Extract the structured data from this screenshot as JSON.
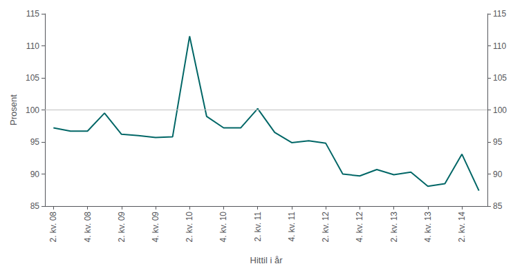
{
  "chart_data": {
    "type": "line",
    "xlabel": "Hittil i år",
    "ylabel": "Prosent",
    "categories": [
      "2. kv. 08",
      null,
      "4. kv. 08",
      null,
      "2. kv. 09",
      null,
      "4. kv. 09",
      null,
      "2. kv. 10",
      null,
      "4. kv. 10",
      null,
      "2. kv. 11",
      null,
      "4. kv. 11",
      null,
      "2. kv. 12",
      null,
      "4. kv. 12",
      null,
      "2. kv. 13",
      null,
      "4. kv. 13",
      null,
      "2. kv. 14",
      null
    ],
    "values": [
      97.2,
      96.7,
      96.7,
      99.5,
      96.2,
      96.0,
      95.7,
      95.8,
      111.5,
      99.0,
      97.2,
      97.2,
      100.2,
      96.5,
      94.9,
      95.2,
      94.8,
      90.0,
      89.7,
      90.7,
      89.9,
      90.3,
      88.1,
      88.5,
      93.1,
      87.4
    ],
    "color": "#006666",
    "ylim": [
      85,
      115
    ],
    "yticks": [
      85,
      90,
      95,
      100,
      105,
      110,
      115
    ],
    "y2lim": [
      85,
      115
    ],
    "y2ticks": [
      85,
      90,
      95,
      100,
      105,
      110,
      115
    ],
    "reference_line": {
      "value": 100,
      "color": "#c0c0c0"
    },
    "grid": false
  }
}
